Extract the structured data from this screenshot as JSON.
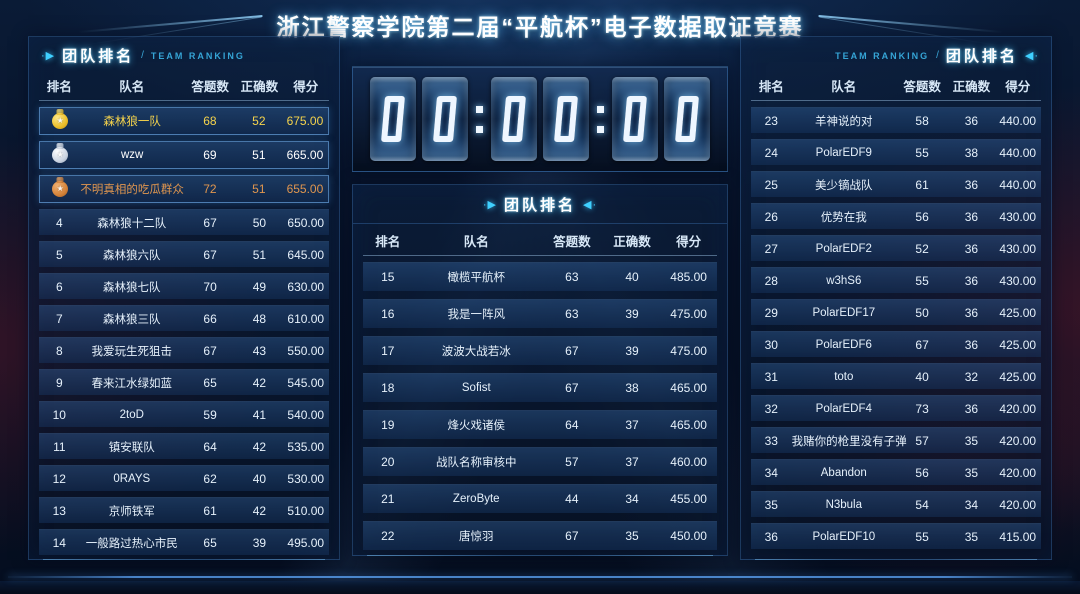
{
  "title": "浙江警察学院第二届“平航杯”电子数据取证竞赛",
  "divider": "/",
  "icons": {
    "arrow_right": "·▶",
    "arrow_left": "◀·",
    "medal_star": "★"
  },
  "clock": {
    "display": "00:00:00"
  },
  "columns": [
    "排名",
    "队名",
    "答题数",
    "正确数",
    "得分"
  ],
  "panels": {
    "left": {
      "title": "团队排名",
      "subtitle": "TEAM RANKING",
      "rows": [
        {
          "rank": "1",
          "name": "森林狼一队",
          "answered": "68",
          "correct": "52",
          "score": "675.00",
          "medal": "gold",
          "tone": "gold"
        },
        {
          "rank": "2",
          "name": "wzw",
          "answered": "69",
          "correct": "51",
          "score": "665.00",
          "medal": "silver",
          "tone": "silver"
        },
        {
          "rank": "3",
          "name": "不明真相的吃瓜群众",
          "answered": "72",
          "correct": "51",
          "score": "655.00",
          "medal": "bronze",
          "tone": "bronze"
        },
        {
          "rank": "4",
          "name": "森林狼十二队",
          "answered": "67",
          "correct": "50",
          "score": "650.00"
        },
        {
          "rank": "5",
          "name": "森林狼六队",
          "answered": "67",
          "correct": "51",
          "score": "645.00"
        },
        {
          "rank": "6",
          "name": "森林狼七队",
          "answered": "70",
          "correct": "49",
          "score": "630.00"
        },
        {
          "rank": "7",
          "name": "森林狼三队",
          "answered": "66",
          "correct": "48",
          "score": "610.00"
        },
        {
          "rank": "8",
          "name": "我爱玩生死狙击",
          "answered": "67",
          "correct": "43",
          "score": "550.00"
        },
        {
          "rank": "9",
          "name": "春来江水绿如蓝",
          "answered": "65",
          "correct": "42",
          "score": "545.00"
        },
        {
          "rank": "10",
          "name": "2toD",
          "answered": "59",
          "correct": "41",
          "score": "540.00"
        },
        {
          "rank": "11",
          "name": "镇安联队",
          "answered": "64",
          "correct": "42",
          "score": "535.00"
        },
        {
          "rank": "12",
          "name": "0RAYS",
          "answered": "62",
          "correct": "40",
          "score": "530.00"
        },
        {
          "rank": "13",
          "name": "京师铁军",
          "answered": "61",
          "correct": "42",
          "score": "510.00"
        },
        {
          "rank": "14",
          "name": "一般路过热心市民",
          "answered": "65",
          "correct": "39",
          "score": "495.00"
        }
      ]
    },
    "middle": {
      "title": "团队排名",
      "rows": [
        {
          "rank": "15",
          "name": "橄榄平航杯",
          "answered": "63",
          "correct": "40",
          "score": "485.00"
        },
        {
          "rank": "16",
          "name": "我是一阵风",
          "answered": "63",
          "correct": "39",
          "score": "475.00"
        },
        {
          "rank": "17",
          "name": "波波大战若冰",
          "answered": "67",
          "correct": "39",
          "score": "475.00"
        },
        {
          "rank": "18",
          "name": "Sofist",
          "answered": "67",
          "correct": "38",
          "score": "465.00"
        },
        {
          "rank": "19",
          "name": "烽火戏诸侯",
          "answered": "64",
          "correct": "37",
          "score": "465.00"
        },
        {
          "rank": "20",
          "name": "战队名称审核中",
          "answered": "57",
          "correct": "37",
          "score": "460.00"
        },
        {
          "rank": "21",
          "name": "ZeroByte",
          "answered": "44",
          "correct": "34",
          "score": "455.00"
        },
        {
          "rank": "22",
          "name": "唐惊羽",
          "answered": "67",
          "correct": "35",
          "score": "450.00"
        }
      ]
    },
    "right": {
      "title": "团队排名",
      "subtitle": "TEAM RANKING",
      "rows": [
        {
          "rank": "23",
          "name": "羊神说的对",
          "answered": "58",
          "correct": "36",
          "score": "440.00"
        },
        {
          "rank": "24",
          "name": "PolarEDF9",
          "answered": "55",
          "correct": "38",
          "score": "440.00"
        },
        {
          "rank": "25",
          "name": "美少镝战队",
          "answered": "61",
          "correct": "36",
          "score": "440.00"
        },
        {
          "rank": "26",
          "name": "优势在我",
          "answered": "56",
          "correct": "36",
          "score": "430.00"
        },
        {
          "rank": "27",
          "name": "PolarEDF2",
          "answered": "52",
          "correct": "36",
          "score": "430.00"
        },
        {
          "rank": "28",
          "name": "w3hS6",
          "answered": "55",
          "correct": "36",
          "score": "430.00"
        },
        {
          "rank": "29",
          "name": "PolarEDF17",
          "answered": "50",
          "correct": "36",
          "score": "425.00"
        },
        {
          "rank": "30",
          "name": "PolarEDF6",
          "answered": "67",
          "correct": "36",
          "score": "425.00"
        },
        {
          "rank": "31",
          "name": "toto",
          "answered": "40",
          "correct": "32",
          "score": "425.00"
        },
        {
          "rank": "32",
          "name": "PolarEDF4",
          "answered": "73",
          "correct": "36",
          "score": "420.00"
        },
        {
          "rank": "33",
          "name": "我赌你的枪里没有子弹",
          "answered": "57",
          "correct": "35",
          "score": "420.00"
        },
        {
          "rank": "34",
          "name": "Abandon",
          "answered": "56",
          "correct": "35",
          "score": "420.00"
        },
        {
          "rank": "35",
          "name": "N3bula",
          "answered": "54",
          "correct": "34",
          "score": "420.00"
        },
        {
          "rank": "36",
          "name": "PolarEDF10",
          "answered": "55",
          "correct": "35",
          "score": "415.00"
        }
      ]
    }
  }
}
